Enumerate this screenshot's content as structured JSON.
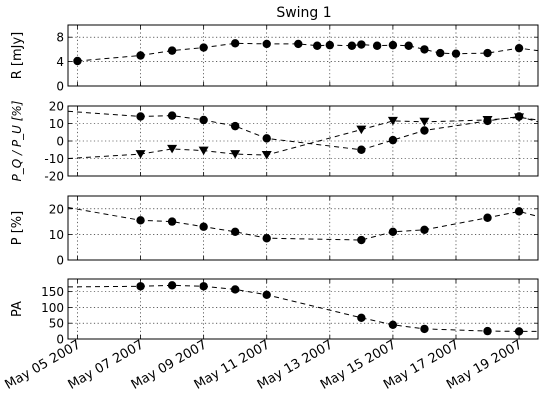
{
  "chart_data": {
    "type": "line",
    "title": "Swing 1",
    "x_dates": [
      "2007-05-05",
      "2007-05-07",
      "2007-05-09",
      "2007-05-11",
      "2007-05-13",
      "2007-05-15",
      "2007-05-17",
      "2007-05-19"
    ],
    "xlim": [
      "2007-05-04.7",
      "2007-05-19.6"
    ],
    "x_tick_labels": [
      "May 05 2007",
      "May 07 2007",
      "May 09 2007",
      "May 11 2007",
      "May 13 2007",
      "May 15 2007",
      "May 17 2007",
      "May 19 2007"
    ],
    "grid": true,
    "panels": [
      {
        "ylabel": "R [mJy]",
        "ylim": [
          0,
          10
        ],
        "yticks": [
          0,
          4,
          8
        ],
        "series": [
          {
            "marker": "circle",
            "points": [
              [
                "2007-05-05",
                4.1
              ],
              [
                "2007-05-07",
                5.0
              ],
              [
                "2007-05-08",
                5.8
              ],
              [
                "2007-05-09",
                6.3
              ],
              [
                "2007-05-10",
                7.0
              ],
              [
                "2007-05-11",
                6.9
              ],
              [
                "2007-05-12",
                6.9
              ],
              [
                "2007-05-12.6",
                6.6
              ],
              [
                "2007-05-13",
                6.7
              ],
              [
                "2007-05-13.7",
                6.6
              ],
              [
                "2007-05-14",
                6.8
              ],
              [
                "2007-05-14.5",
                6.6
              ],
              [
                "2007-05-15",
                6.7
              ],
              [
                "2007-05-15.5",
                6.6
              ],
              [
                "2007-05-16",
                6.0
              ],
              [
                "2007-05-16.5",
                5.4
              ],
              [
                "2007-05-17",
                5.3
              ],
              [
                "2007-05-18",
                5.4
              ],
              [
                "2007-05-19",
                6.2
              ],
              [
                "2007-05-19.6",
                5.8
              ]
            ]
          }
        ]
      },
      {
        "ylabel": "P_Q / P_U [%]",
        "ylim": [
          -20,
          20
        ],
        "yticks": [
          -20,
          -10,
          0,
          10,
          20
        ],
        "series": [
          {
            "marker": "circle",
            "points": [
              [
                "2007-05-04.7",
                17
              ],
              [
                "2007-05-07",
                14
              ],
              [
                "2007-05-08",
                14.5
              ],
              [
                "2007-05-09",
                12
              ],
              [
                "2007-05-10",
                8.5
              ],
              [
                "2007-05-11",
                1.5
              ],
              [
                "2007-05-14",
                -5
              ],
              [
                "2007-05-15",
                0.5
              ],
              [
                "2007-05-16",
                6
              ],
              [
                "2007-05-18",
                11.5
              ],
              [
                "2007-05-19",
                14
              ],
              [
                "2007-05-19.6",
                11
              ]
            ]
          },
          {
            "marker": "triangle-down",
            "points": [
              [
                "2007-05-04.7",
                -10
              ],
              [
                "2007-05-07",
                -7.5
              ],
              [
                "2007-05-08",
                -4.5
              ],
              [
                "2007-05-09",
                -5.5
              ],
              [
                "2007-05-10",
                -7.5
              ],
              [
                "2007-05-11",
                -8
              ],
              [
                "2007-05-14",
                6.5
              ],
              [
                "2007-05-15",
                11.5
              ],
              [
                "2007-05-16",
                11
              ],
              [
                "2007-05-18",
                12
              ],
              [
                "2007-05-19",
                13.5
              ],
              [
                "2007-05-19.6",
                12
              ]
            ]
          }
        ]
      },
      {
        "ylabel": "P [%]",
        "ylim": [
          0,
          25
        ],
        "yticks": [
          0,
          10,
          20
        ],
        "series": [
          {
            "marker": "circle",
            "points": [
              [
                "2007-05-04.7",
                20.5
              ],
              [
                "2007-05-07",
                15.5
              ],
              [
                "2007-05-08",
                15
              ],
              [
                "2007-05-09",
                13
              ],
              [
                "2007-05-10",
                11
              ],
              [
                "2007-05-11",
                8.5
              ],
              [
                "2007-05-14",
                7.8
              ],
              [
                "2007-05-15",
                11
              ],
              [
                "2007-05-16",
                11.8
              ],
              [
                "2007-05-18",
                16.5
              ],
              [
                "2007-05-19",
                19
              ],
              [
                "2007-05-19.6",
                17
              ]
            ]
          }
        ]
      },
      {
        "ylabel": "PA",
        "ylim": [
          0,
          190
        ],
        "yticks": [
          0,
          50,
          100,
          150
        ],
        "series": [
          {
            "marker": "circle",
            "points": [
              [
                "2007-05-04.7",
                165
              ],
              [
                "2007-05-07",
                167
              ],
              [
                "2007-05-08",
                170
              ],
              [
                "2007-05-09",
                167
              ],
              [
                "2007-05-10",
                157
              ],
              [
                "2007-05-11",
                140
              ],
              [
                "2007-05-14",
                67
              ],
              [
                "2007-05-15",
                45
              ],
              [
                "2007-05-16",
                32
              ],
              [
                "2007-05-18",
                25
              ],
              [
                "2007-05-19",
                24
              ],
              [
                "2007-05-19.6",
                24
              ]
            ]
          }
        ]
      }
    ]
  }
}
